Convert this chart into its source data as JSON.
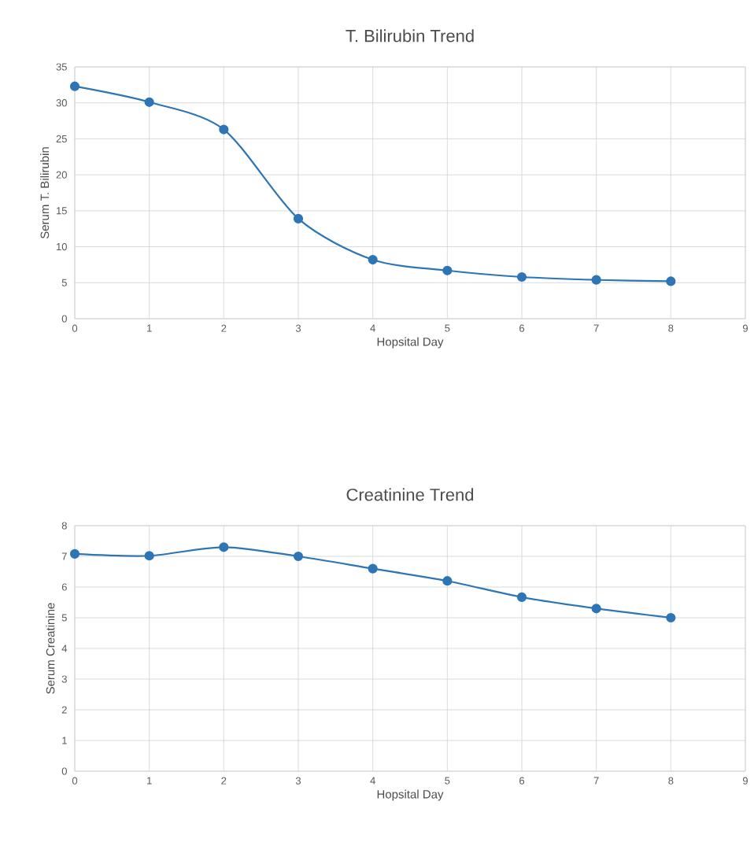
{
  "chart_data": [
    {
      "type": "line",
      "title": "T. Bilirubin Trend",
      "xlabel": "Hopsital Day",
      "ylabel": "Serum T. Bilirubin",
      "x": [
        0,
        1,
        2,
        3,
        4,
        5,
        6,
        7,
        8
      ],
      "series": [
        {
          "color": "#2e75b6",
          "values": [
            32.3,
            30.1,
            26.3,
            13.9,
            8.2,
            6.7,
            5.8,
            5.4,
            5.2
          ]
        }
      ],
      "xlim": [
        0,
        9
      ],
      "xticks": [
        0,
        1,
        2,
        3,
        4,
        5,
        6,
        7,
        8,
        9
      ],
      "ylim": [
        0,
        35
      ],
      "yticks": [
        0,
        5,
        10,
        15,
        20,
        25,
        30,
        35
      ],
      "grid": true,
      "marker": "circle"
    },
    {
      "type": "line",
      "title": "Creatinine Trend",
      "xlabel": "Hopsital Day",
      "ylabel": "Serum Creatinine",
      "x": [
        0,
        1,
        2,
        3,
        4,
        5,
        6,
        7,
        8
      ],
      "series": [
        {
          "color": "#2e75b6",
          "values": [
            7.08,
            7.02,
            7.3,
            7.0,
            6.6,
            6.2,
            5.67,
            5.3,
            5.0
          ]
        }
      ],
      "xlim": [
        0,
        9
      ],
      "xticks": [
        0,
        1,
        2,
        3,
        4,
        5,
        6,
        7,
        8,
        9
      ],
      "ylim": [
        0,
        8
      ],
      "yticks": [
        0,
        1,
        2,
        3,
        4,
        5,
        6,
        7,
        8
      ],
      "grid": true,
      "marker": "circle"
    }
  ]
}
